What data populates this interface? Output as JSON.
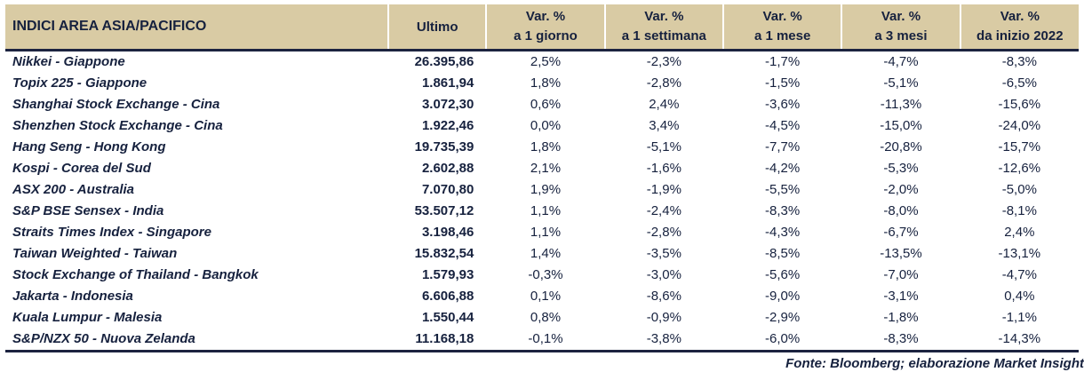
{
  "colors": {
    "header_bg": "#d9cba4",
    "text": "#16213e",
    "rule": "#1c2340",
    "background": "#ffffff"
  },
  "table": {
    "header": {
      "title": "INDICI AREA ASIA/PACIFICO",
      "ultimo": "Ultimo",
      "var_label": "Var. %",
      "sub_labels": [
        "a 1 giorno",
        "a 1 settimana",
        "a 1 mese",
        "a 3 mesi",
        "da inizio 2022"
      ]
    },
    "rows": [
      {
        "name": "Nikkei - Giappone",
        "ultimo": "26.395,86",
        "values": [
          "2,5%",
          "-2,3%",
          "-1,7%",
          "-4,7%",
          "-8,3%"
        ]
      },
      {
        "name": "Topix 225 - Giappone",
        "ultimo": "1.861,94",
        "values": [
          "1,8%",
          "-2,8%",
          "-1,5%",
          "-5,1%",
          "-6,5%"
        ]
      },
      {
        "name": "Shanghai Stock Exchange - Cina",
        "ultimo": "3.072,30",
        "values": [
          "0,6%",
          "2,4%",
          "-3,6%",
          "-11,3%",
          "-15,6%"
        ]
      },
      {
        "name": "Shenzhen Stock Exchange - Cina",
        "ultimo": "1.922,46",
        "values": [
          "0,0%",
          "3,4%",
          "-4,5%",
          "-15,0%",
          "-24,0%"
        ]
      },
      {
        "name": "Hang Seng - Hong Kong",
        "ultimo": "19.735,39",
        "values": [
          "1,8%",
          "-5,1%",
          "-7,7%",
          "-20,8%",
          "-15,7%"
        ]
      },
      {
        "name": "Kospi - Corea del Sud",
        "ultimo": "2.602,88",
        "values": [
          "2,1%",
          "-1,6%",
          "-4,2%",
          "-5,3%",
          "-12,6%"
        ]
      },
      {
        "name": "ASX 200 - Australia",
        "ultimo": "7.070,80",
        "values": [
          "1,9%",
          "-1,9%",
          "-5,5%",
          "-2,0%",
          "-5,0%"
        ]
      },
      {
        "name": "S&P BSE Sensex - India",
        "ultimo": "53.507,12",
        "values": [
          "1,1%",
          "-2,4%",
          "-8,3%",
          "-8,0%",
          "-8,1%"
        ]
      },
      {
        "name": "Straits Times Index - Singapore",
        "ultimo": "3.198,46",
        "values": [
          "1,1%",
          "-2,8%",
          "-4,3%",
          "-6,7%",
          "2,4%"
        ]
      },
      {
        "name": "Taiwan Weighted - Taiwan",
        "ultimo": "15.832,54",
        "values": [
          "1,4%",
          "-3,5%",
          "-8,5%",
          "-13,5%",
          "-13,1%"
        ]
      },
      {
        "name": "Stock Exchange of Thailand - Bangkok",
        "ultimo": "1.579,93",
        "values": [
          "-0,3%",
          "-3,0%",
          "-5,6%",
          "-7,0%",
          "-4,7%"
        ]
      },
      {
        "name": "Jakarta - Indonesia",
        "ultimo": "6.606,88",
        "values": [
          "0,1%",
          "-8,6%",
          "-9,0%",
          "-3,1%",
          "0,4%"
        ]
      },
      {
        "name": "Kuala Lumpur - Malesia",
        "ultimo": "1.550,44",
        "values": [
          "0,8%",
          "-0,9%",
          "-2,9%",
          "-1,8%",
          "-1,1%"
        ]
      },
      {
        "name": "S&P/NZX 50 - Nuova Zelanda",
        "ultimo": "11.168,18",
        "values": [
          "-0,1%",
          "-3,8%",
          "-6,0%",
          "-8,3%",
          "-14,3%"
        ]
      }
    ]
  },
  "footer": {
    "source": "Fonte: Bloomberg; elaborazione Market Insight"
  }
}
